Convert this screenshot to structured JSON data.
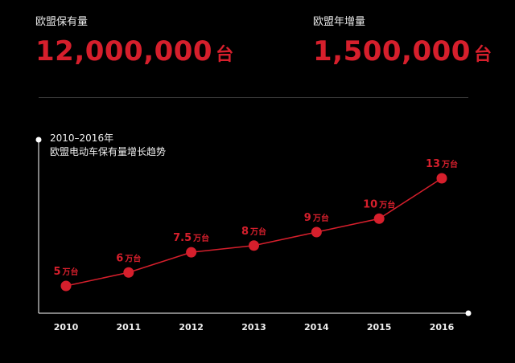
{
  "stats": [
    {
      "label": "欧盟保有量",
      "number": "12,000,000",
      "unit": "台"
    },
    {
      "label": "欧盟年增量",
      "number": "1,500,000",
      "unit": "台"
    }
  ],
  "chart_title": [
    "2010–2016年",
    "欧盟电动车保有量增长趋势"
  ],
  "chart_data": {
    "type": "line",
    "title": "2010–2016年 欧盟电动车保有量增长趋势",
    "categories": [
      "2010",
      "2011",
      "2012",
      "2013",
      "2014",
      "2015",
      "2016"
    ],
    "series": [
      {
        "values": [
          5,
          6,
          7.5,
          8,
          9,
          10,
          13
        ],
        "labels": [
          "5",
          "6",
          "7.5",
          "8",
          "9",
          "10",
          "13"
        ],
        "unit": "万台"
      }
    ],
    "grid": false,
    "color": "#d61f2c"
  },
  "colors": {
    "accent": "#d61f2c",
    "background": "#000000",
    "axis": "#ffffff"
  }
}
